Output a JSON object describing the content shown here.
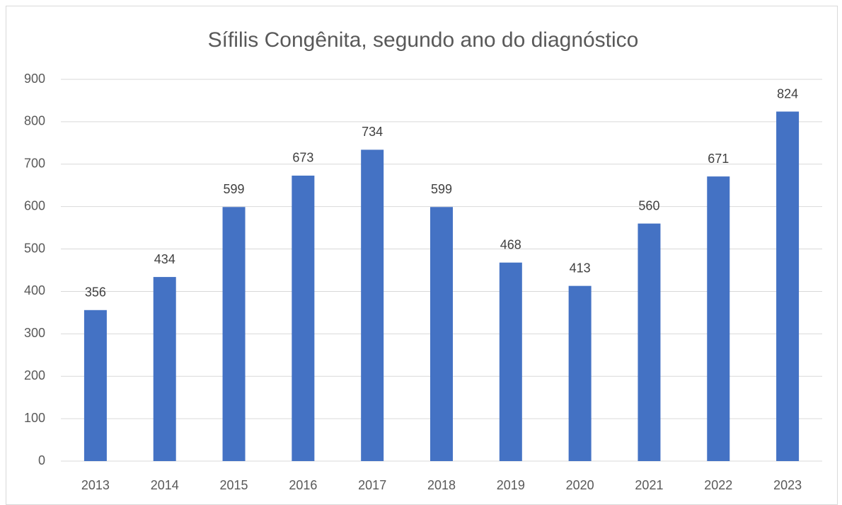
{
  "chart_data": {
    "type": "bar",
    "title": "Sífilis Congênita, segundo ano do diagnóstico",
    "categories": [
      "2013",
      "2014",
      "2015",
      "2016",
      "2017",
      "2018",
      "2019",
      "2020",
      "2021",
      "2022",
      "2023"
    ],
    "values": [
      356,
      434,
      599,
      673,
      734,
      599,
      468,
      413,
      560,
      671,
      824
    ],
    "color": "#4472c4",
    "ylim": [
      0,
      900
    ],
    "yticks": [
      0,
      100,
      200,
      300,
      400,
      500,
      600,
      700,
      800,
      900
    ],
    "grid": true,
    "data_labels": true
  }
}
